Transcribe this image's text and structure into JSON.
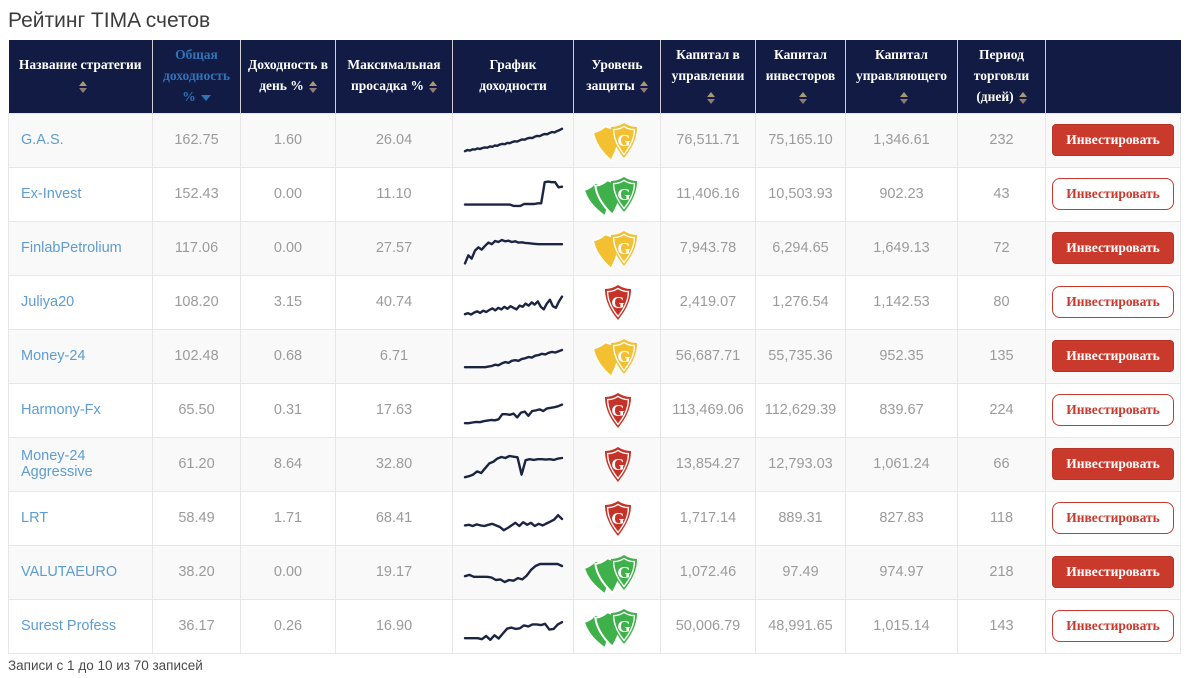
{
  "title": "Рейтинг TIMA счетов",
  "colors": {
    "header_bg": "#111b43",
    "accent_blue": "#3273b8",
    "link_blue": "#5e9cd3",
    "button_red": "#c9392c",
    "spark_navy": "#1b2542",
    "shield_low": "#c53227",
    "shield_medium": "#f3c032",
    "shield_high": "#3fb14a"
  },
  "table": {
    "columns": [
      {
        "key": "name",
        "label": "Название стратегии",
        "sortable": true,
        "active": false
      },
      {
        "key": "total_return",
        "label": "Общая доходность %",
        "sortable": true,
        "active": true,
        "direction": "desc"
      },
      {
        "key": "daily_return",
        "label": "Доходность в день %",
        "sortable": true,
        "active": false
      },
      {
        "key": "max_drawdown",
        "label": "Максимальная просадка %",
        "sortable": true,
        "active": false
      },
      {
        "key": "chart",
        "label": "График доходности",
        "sortable": false,
        "active": false
      },
      {
        "key": "protection",
        "label": "Уровень защиты",
        "sortable": true,
        "active": false
      },
      {
        "key": "capital_managed",
        "label": "Капитал в управлении",
        "sortable": true,
        "active": false
      },
      {
        "key": "capital_investors",
        "label": "Капитал инвесторов",
        "sortable": true,
        "active": false
      },
      {
        "key": "capital_manager",
        "label": "Капитал управляющего",
        "sortable": true,
        "active": false
      },
      {
        "key": "period",
        "label": "Период торговли (дней)",
        "sortable": true,
        "active": false
      },
      {
        "key": "actions",
        "label": "",
        "sortable": false,
        "active": false
      }
    ],
    "invest_button_label": "Инвестировать",
    "rows": [
      {
        "name": "G.A.S.",
        "total_return": "162.75",
        "daily_return": "1.60",
        "max_drawdown": "26.04",
        "protection_level": "medium",
        "shield_count": 2,
        "capital_managed": "76,511.71",
        "capital_investors": "75,165.10",
        "capital_manager": "1,346.61",
        "period": "232",
        "button_variant": "filled",
        "spark": [
          18,
          22,
          20,
          24,
          23,
          27,
          25,
          28,
          30,
          29,
          33,
          32,
          36,
          35,
          39,
          41,
          40,
          44,
          43,
          47,
          49,
          48,
          52,
          55,
          54,
          58,
          60,
          59,
          63,
          66,
          65,
          69,
          72,
          71,
          75,
          78,
          77,
          81,
          84,
          88
        ]
      },
      {
        "name": "Ex-Invest",
        "total_return": "152.43",
        "daily_return": "0.00",
        "max_drawdown": "11.10",
        "protection_level": "high",
        "shield_count": 3,
        "capital_managed": "11,406.16",
        "capital_investors": "10,503.93",
        "capital_manager": "902.23",
        "period": "43",
        "button_variant": "outline",
        "spark": [
          20,
          20,
          20,
          20,
          20,
          20,
          20,
          20,
          20,
          20,
          20,
          20,
          20,
          20,
          16,
          16,
          16,
          22,
          22,
          22,
          22,
          24,
          24,
          90,
          92,
          90,
          90,
          74,
          76
        ]
      },
      {
        "name": "FinlabPetrolium",
        "total_return": "117.06",
        "daily_return": "0.00",
        "max_drawdown": "27.57",
        "protection_level": "medium",
        "shield_count": 2,
        "capital_managed": "7,943.78",
        "capital_investors": "6,294.65",
        "capital_manager": "1,649.13",
        "period": "72",
        "button_variant": "filled",
        "spark": [
          5,
          30,
          20,
          45,
          55,
          48,
          60,
          70,
          65,
          75,
          72,
          78,
          74,
          76,
          72,
          74,
          70,
          71,
          69,
          68,
          67,
          66,
          65,
          65,
          65,
          65,
          65,
          65,
          65,
          65
        ]
      },
      {
        "name": "Juliya20",
        "total_return": "108.20",
        "daily_return": "3.15",
        "max_drawdown": "40.74",
        "protection_level": "low",
        "shield_count": 1,
        "capital_managed": "2,419.07",
        "capital_investors": "1,276.54",
        "capital_manager": "1,142.53",
        "period": "80",
        "button_variant": "outline",
        "spark": [
          15,
          18,
          14,
          20,
          24,
          19,
          26,
          22,
          28,
          33,
          27,
          35,
          30,
          38,
          32,
          40,
          35,
          30,
          42,
          38,
          48,
          42,
          52,
          45,
          55,
          38,
          30,
          48,
          60,
          40,
          35,
          55,
          70
        ]
      },
      {
        "name": "Money-24",
        "total_return": "102.48",
        "daily_return": "0.68",
        "max_drawdown": "6.71",
        "protection_level": "medium",
        "shield_count": 2,
        "capital_managed": "56,687.71",
        "capital_investors": "55,735.36",
        "capital_manager": "952.35",
        "period": "135",
        "button_variant": "filled",
        "spark": [
          18,
          18,
          18,
          18,
          18,
          18,
          18,
          20,
          22,
          26,
          24,
          30,
          34,
          32,
          38,
          40,
          38,
          44,
          46,
          50,
          48,
          54,
          56,
          60,
          58,
          63,
          66,
          64,
          68,
          72
        ]
      },
      {
        "name": "Harmony-Fx",
        "total_return": "65.50",
        "daily_return": "0.31",
        "max_drawdown": "17.63",
        "protection_level": "low",
        "shield_count": 1,
        "capital_managed": "113,469.06",
        "capital_investors": "112,629.39",
        "capital_manager": "839.67",
        "period": "224",
        "button_variant": "outline",
        "spark": [
          12,
          12,
          14,
          16,
          15,
          18,
          20,
          22,
          21,
          24,
          40,
          40,
          38,
          42,
          30,
          45,
          48,
          35,
          50,
          52,
          55,
          50,
          58,
          60,
          62,
          65,
          70
        ]
      },
      {
        "name": "Money-24 Aggressive",
        "total_return": "61.20",
        "daily_return": "8.64",
        "max_drawdown": "32.80",
        "protection_level": "low",
        "shield_count": 1,
        "capital_managed": "13,854.27",
        "capital_investors": "12,793.03",
        "capital_manager": "1,061.24",
        "period": "66",
        "button_variant": "filled",
        "spark": [
          12,
          15,
          20,
          30,
          25,
          40,
          55,
          60,
          70,
          75,
          72,
          78,
          76,
          74,
          20,
          65,
          68,
          66,
          68,
          68,
          67,
          68,
          66,
          70,
          72
        ]
      },
      {
        "name": "LRT",
        "total_return": "58.49",
        "daily_return": "1.71",
        "max_drawdown": "68.41",
        "protection_level": "low",
        "shield_count": 1,
        "capital_managed": "1,717.14",
        "capital_investors": "889.31",
        "capital_manager": "827.83",
        "period": "118",
        "button_variant": "outline",
        "spark": [
          30,
          32,
          28,
          33,
          30,
          28,
          32,
          35,
          30,
          25,
          15,
          22,
          30,
          38,
          28,
          40,
          32,
          38,
          28,
          35,
          30,
          36,
          42,
          48,
          62,
          50
        ]
      },
      {
        "name": "VALUTAEURO",
        "total_return": "38.20",
        "daily_return": "0.00",
        "max_drawdown": "19.17",
        "protection_level": "high",
        "shield_count": 3,
        "capital_managed": "1,072.46",
        "capital_investors": "97.49",
        "capital_manager": "974.97",
        "period": "218",
        "button_variant": "filled",
        "spark": [
          40,
          44,
          38,
          38,
          38,
          38,
          36,
          28,
          30,
          22,
          28,
          26,
          34,
          30,
          42,
          60,
          72,
          78,
          78,
          78,
          78,
          78,
          72
        ]
      },
      {
        "name": "Surest Profess",
        "total_return": "36.17",
        "daily_return": "0.26",
        "max_drawdown": "16.90",
        "protection_level": "high",
        "shield_count": 3,
        "capital_managed": "50,006.79",
        "capital_investors": "48,991.65",
        "capital_manager": "1,015.14",
        "period": "143",
        "button_variant": "outline",
        "spark": [
          15,
          15,
          15,
          15,
          12,
          22,
          10,
          24,
          14,
          30,
          45,
          48,
          44,
          46,
          55,
          52,
          58,
          58,
          56,
          60,
          42,
          44,
          58,
          65
        ]
      }
    ]
  },
  "footer": {
    "info_text": "Записи с 1 до 10 из 70 записей"
  }
}
